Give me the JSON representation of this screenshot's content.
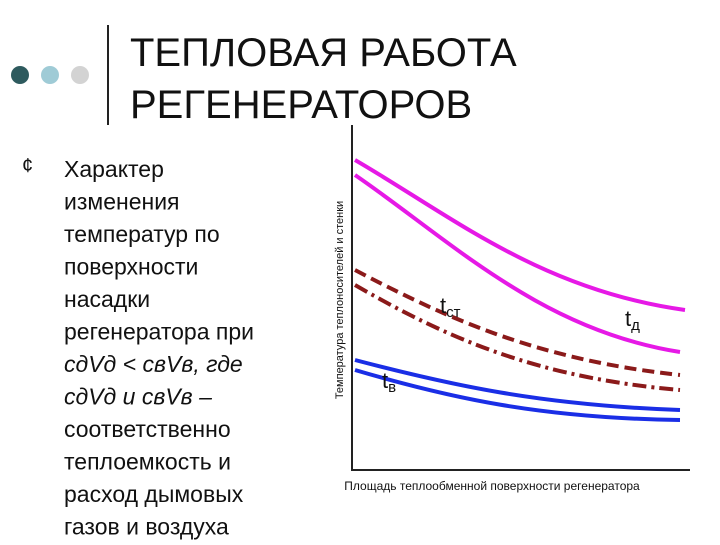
{
  "header": {
    "title_lines": [
      "ТЕПЛОВАЯ РАБОТА",
      "РЕГЕНЕРАТОРОВ"
    ]
  },
  "bullet": {
    "lines": [
      "Характер",
      "изменения",
      "температур по",
      "поверхности",
      "насадки",
      "регенератора при",
      "cдVд < cвVв, где",
      "cдVд и cвVв –",
      "соответственно",
      "теплоемкость и",
      "расход дымовых",
      "газов и воздуха"
    ]
  },
  "figure": {
    "y_label": "Температура теплоносителей и стенки",
    "x_label": "Площадь теплообменной поверхности регенератора",
    "curve_labels": [
      {
        "main": "t",
        "sub": "ст"
      },
      {
        "main": "t",
        "sub": "д"
      },
      {
        "main": "t",
        "sub": "в"
      }
    ]
  }
}
